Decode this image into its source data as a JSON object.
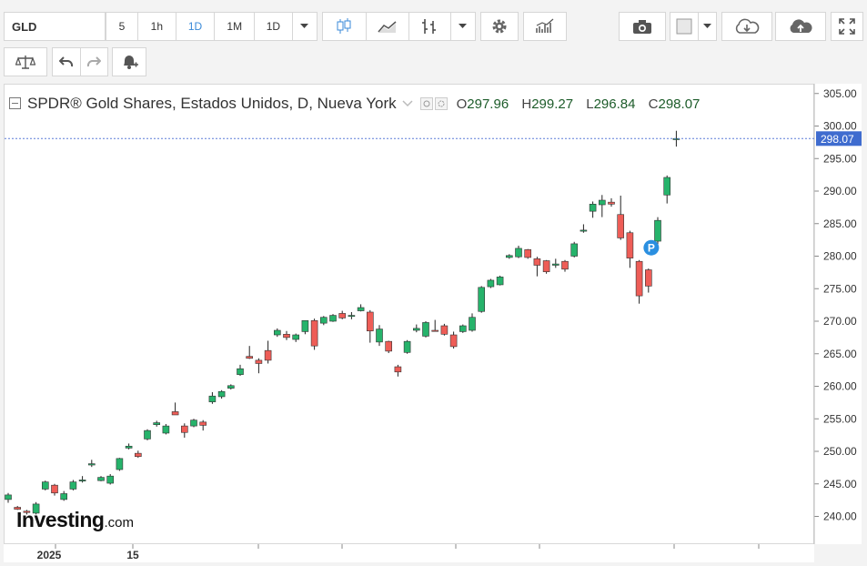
{
  "toolbar": {
    "symbol": "GLD",
    "intervals": [
      "5",
      "1h",
      "1D",
      "1M",
      "1D"
    ],
    "active_interval": "1D",
    "icons": [
      "candlestick-icon",
      "line-chart-icon",
      "bar-chart-icon",
      "dropdown-icon",
      "gear-icon",
      "indicators-icon",
      "camera-icon",
      "square-icon",
      "dropdown-icon",
      "cloud-download-icon",
      "cloud-upload-icon",
      "fullscreen-icon"
    ],
    "row2_icons": [
      "compare-icon",
      "undo-icon",
      "redo-icon",
      "alert-icon"
    ]
  },
  "legend": {
    "title": "SPDR® Gold Shares, Estados Unidos, D, Nueva York",
    "open_label": "O",
    "open": "297.96",
    "high_label": "H",
    "high": "299.27",
    "low_label": "L",
    "low": "296.84",
    "close_label": "C",
    "close": "298.07"
  },
  "logo": {
    "brand": "Investing",
    "suffix": ".com"
  },
  "price_label": "298.07",
  "marker_label": "P",
  "colors": {
    "up": "#26b36b",
    "down": "#ee5d57",
    "price_line": "#5b7cd8",
    "price_tag": "#3f6ccf",
    "marker": "#2a8fe0"
  },
  "chart_data": {
    "type": "candlestick",
    "title": "SPDR® Gold Shares, Estados Unidos, D, Nueva York",
    "ylim": [
      236.5,
      306
    ],
    "y_ticks": [
      "240.00",
      "245.00",
      "250.00",
      "255.00",
      "260.00",
      "265.00",
      "270.00",
      "275.00",
      "280.00",
      "285.00",
      "290.00",
      "295.00",
      "300.00",
      "305.00"
    ],
    "x_tick_labels": [
      "2025",
      "15"
    ],
    "last_price": 298.07,
    "ohlc": [
      [
        242.6,
        243.6,
        242.1,
        243.3
      ],
      [
        241.4,
        241.6,
        241.0,
        241.1
      ],
      [
        240.8,
        241.0,
        240.3,
        240.6
      ],
      [
        240.5,
        242.2,
        240.3,
        241.9
      ],
      [
        244.2,
        245.5,
        244.0,
        245.3
      ],
      [
        244.8,
        245.0,
        243.2,
        243.6
      ],
      [
        242.6,
        243.9,
        242.4,
        243.5
      ],
      [
        244.2,
        245.6,
        244.0,
        245.3
      ],
      [
        245.5,
        246.2,
        245.2,
        245.6
      ],
      [
        247.9,
        248.7,
        247.6,
        248.1
      ],
      [
        245.5,
        246.2,
        245.4,
        246.0
      ],
      [
        245.1,
        246.5,
        244.9,
        246.2
      ],
      [
        247.2,
        249.0,
        247.0,
        248.9
      ],
      [
        250.5,
        251.2,
        250.3,
        250.8
      ],
      [
        249.7,
        250.1,
        249.0,
        249.2
      ],
      [
        251.9,
        253.4,
        251.7,
        253.2
      ],
      [
        254.1,
        254.7,
        253.8,
        254.4
      ],
      [
        252.8,
        254.2,
        252.6,
        253.9
      ],
      [
        256.1,
        257.5,
        255.9,
        255.6
      ],
      [
        253.9,
        254.3,
        252.1,
        252.9
      ],
      [
        253.9,
        255.0,
        253.7,
        254.8
      ],
      [
        254.5,
        254.8,
        253.2,
        254.0
      ],
      [
        257.6,
        259.1,
        257.3,
        258.5
      ],
      [
        258.4,
        259.4,
        258.1,
        259.2
      ],
      [
        259.7,
        260.3,
        259.5,
        260.1
      ],
      [
        261.8,
        263.3,
        261.6,
        262.7
      ],
      [
        264.6,
        266.2,
        264.2,
        264.3
      ],
      [
        264.0,
        264.3,
        262.0,
        263.5
      ],
      [
        265.5,
        267.0,
        263.5,
        264.0
      ],
      [
        267.9,
        268.9,
        267.6,
        268.6
      ],
      [
        268.0,
        268.5,
        267.1,
        267.5
      ],
      [
        267.2,
        268.1,
        266.8,
        267.9
      ],
      [
        268.4,
        270.1,
        268.0,
        270.1
      ],
      [
        270.1,
        270.4,
        265.6,
        266.2
      ],
      [
        269.7,
        270.8,
        269.4,
        270.6
      ],
      [
        270.0,
        271.1,
        269.9,
        270.9
      ],
      [
        271.2,
        271.6,
        270.3,
        270.5
      ],
      [
        270.9,
        271.4,
        270.3,
        270.9
      ],
      [
        271.6,
        272.6,
        271.5,
        272.1
      ],
      [
        271.4,
        271.7,
        266.7,
        268.5
      ],
      [
        266.8,
        269.4,
        266.2,
        268.8
      ],
      [
        266.9,
        267.0,
        265.1,
        265.4
      ],
      [
        263.0,
        263.3,
        261.5,
        262.2
      ],
      [
        265.2,
        267.1,
        265.0,
        266.9
      ],
      [
        268.6,
        269.5,
        268.3,
        268.9
      ],
      [
        267.7,
        270.0,
        267.5,
        269.8
      ],
      [
        268.6,
        270.2,
        268.4,
        268.5
      ],
      [
        269.3,
        269.6,
        267.8,
        268.0
      ],
      [
        267.9,
        268.4,
        265.8,
        266.1
      ],
      [
        268.4,
        269.5,
        268.2,
        269.3
      ],
      [
        268.6,
        271.2,
        268.4,
        270.6
      ],
      [
        271.5,
        275.4,
        271.3,
        275.2
      ],
      [
        275.3,
        276.5,
        275.1,
        276.3
      ],
      [
        275.6,
        277.0,
        275.5,
        276.8
      ],
      [
        279.8,
        280.3,
        279.6,
        280.1
      ],
      [
        279.9,
        281.6,
        279.7,
        281.2
      ],
      [
        281.0,
        281.1,
        279.6,
        279.8
      ],
      [
        279.6,
        279.9,
        276.9,
        278.6
      ],
      [
        279.3,
        279.4,
        277.3,
        277.6
      ],
      [
        278.6,
        279.6,
        278.2,
        278.8
      ],
      [
        279.2,
        279.4,
        277.6,
        278.0
      ],
      [
        280.0,
        282.2,
        279.8,
        281.9
      ],
      [
        283.9,
        284.9,
        283.6,
        284.0
      ],
      [
        286.9,
        288.4,
        285.9,
        288.0
      ],
      [
        287.9,
        289.4,
        286.0,
        288.6
      ],
      [
        288.3,
        288.9,
        287.6,
        288.0
      ],
      [
        286.4,
        289.3,
        282.5,
        282.8
      ],
      [
        283.6,
        283.9,
        278.2,
        279.7
      ],
      [
        279.2,
        279.4,
        272.7,
        273.9
      ],
      [
        277.9,
        278.1,
        274.4,
        275.4
      ],
      [
        282.3,
        286.0,
        281.0,
        285.5
      ],
      [
        289.4,
        292.4,
        288.1,
        292.1
      ],
      [
        297.96,
        299.27,
        296.84,
        298.07
      ]
    ]
  }
}
